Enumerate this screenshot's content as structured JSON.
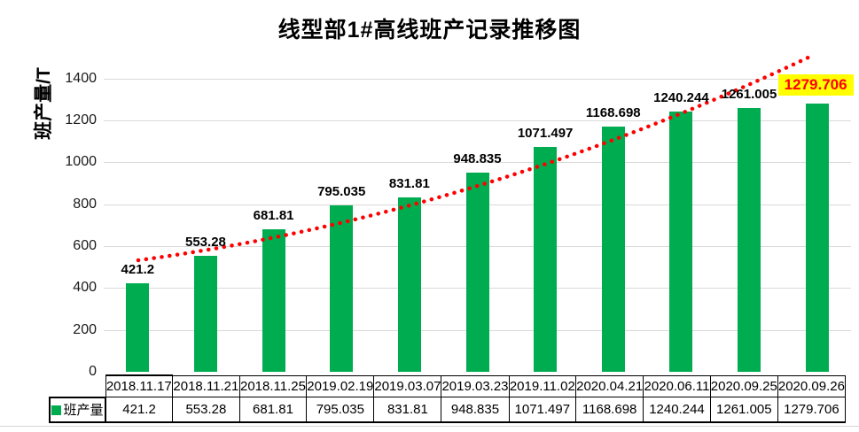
{
  "title": "线型部1#高线班产记录推移图",
  "y_axis_title": "班产量/T",
  "colors": {
    "bar": "#00AC50",
    "trendline": "#FF0000",
    "gridline": "#D9D9D9",
    "highlight_background": "#FFFF00",
    "highlight_text": "#FF0000",
    "table_border": "#000000"
  },
  "table": {
    "legend_label": "班产量"
  },
  "chart_data": {
    "type": "bar",
    "title": "线型部1#高线班产记录推移图",
    "xlabel": "",
    "ylabel": "班产量/T",
    "series_name": "班产量",
    "categories": [
      "2018.11.17",
      "2018.11.21",
      "2018.11.25",
      "2019.02.19",
      "2019.03.07",
      "2019.03.23",
      "2019.11.02",
      "2020.04.21",
      "2020.06.11",
      "2020.09.25",
      "2020.09.26"
    ],
    "values": [
      421.2,
      553.28,
      681.81,
      795.035,
      831.81,
      948.835,
      1071.497,
      1168.698,
      1240.244,
      1261.005,
      1279.706
    ],
    "value_labels": [
      "421.2",
      "553.28",
      "681.81",
      "795.035",
      "831.81",
      "948.835",
      "1071.497",
      "1168.698",
      "1240.244",
      "1261.005",
      "1279.706"
    ],
    "ylim": [
      0,
      1400
    ],
    "yticks": [
      0,
      200,
      400,
      600,
      800,
      1000,
      1200,
      1400
    ],
    "grid": true,
    "legend_position": "bottom-table-left",
    "trendline": {
      "type": "exponential-fit",
      "style": "round-dotted",
      "color": "#FF0000"
    },
    "highlight_last_label": {
      "background": "#FFFF00",
      "text_color": "#FF0000"
    }
  }
}
